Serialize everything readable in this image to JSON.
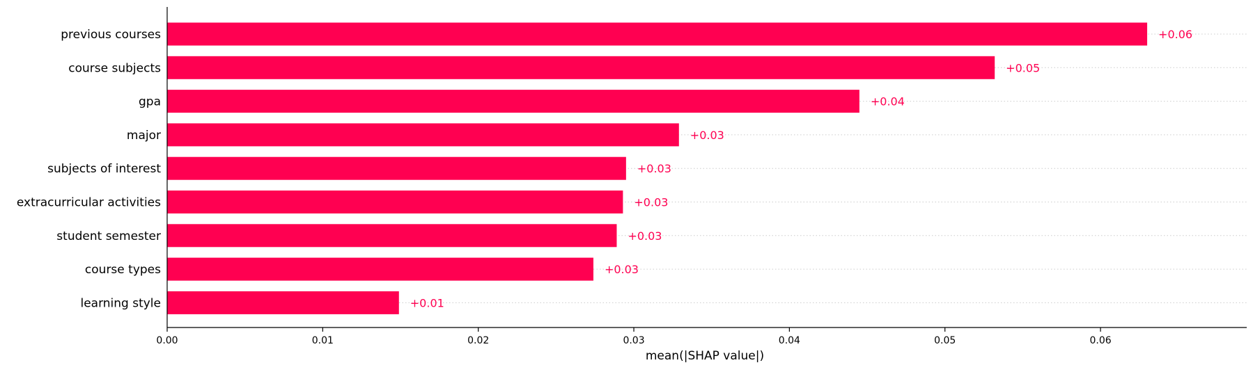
{
  "chart_data": {
    "type": "bar",
    "orientation": "horizontal",
    "categories": [
      "previous courses",
      "course subjects",
      "gpa",
      "major",
      "subjects of interest",
      "extracurricular activities",
      "student semester",
      "course types",
      "learning style"
    ],
    "values": [
      0.063,
      0.0532,
      0.0445,
      0.0329,
      0.0295,
      0.0293,
      0.0289,
      0.0274,
      0.0149
    ],
    "data_labels": [
      "+0.06",
      "+0.05",
      "+0.04",
      "+0.03",
      "+0.03",
      "+0.03",
      "+0.03",
      "+0.03",
      "+0.01"
    ],
    "xlabel": "mean(|SHAP value|)",
    "ylabel": "",
    "xlim": [
      0,
      0.0694
    ],
    "x_ticks": [
      0,
      0.01,
      0.02,
      0.03,
      0.04,
      0.05,
      0.06
    ],
    "x_tick_labels": [
      "0.00",
      "0.01",
      "0.02",
      "0.03",
      "0.04",
      "0.05",
      "0.06"
    ],
    "grid": "dotted horizontal guide lines per bar",
    "legend": "none",
    "colors": {
      "bar": "#ff0051",
      "label": "#ff0051",
      "axis": "#000000",
      "guide": "#cccccc"
    }
  }
}
